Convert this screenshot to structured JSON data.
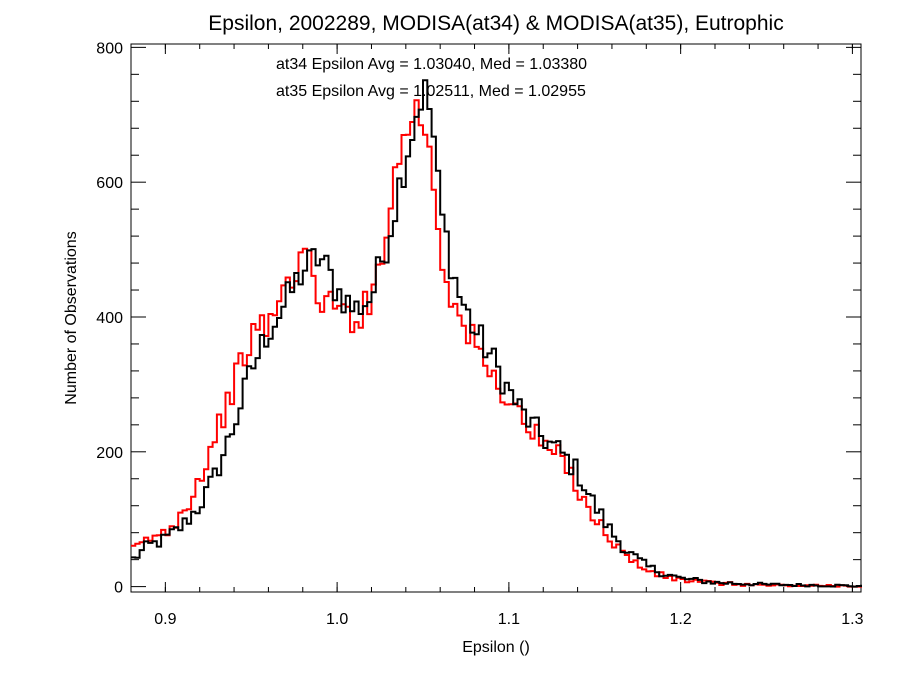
{
  "chart_data": {
    "type": "line",
    "title": "Epsilon, 2002289, MODISA(at34) & MODISA(at35), Eutrophic",
    "xlabel": "Epsilon ()",
    "ylabel": "Number of Observations",
    "xlim": [
      0.88,
      1.305
    ],
    "ylim": [
      -8,
      805
    ],
    "xticks": [
      0.9,
      1.0,
      1.1,
      1.2,
      1.3
    ],
    "xtick_labels": [
      "0.9",
      "1.0",
      "1.1",
      "1.2",
      "1.3"
    ],
    "yticks": [
      0,
      200,
      400,
      600,
      800
    ],
    "ytick_labels": [
      "0",
      "200",
      "400",
      "600",
      "800"
    ],
    "grid": false,
    "annotations": [
      {
        "text": "at34 Epsilon Avg = 1.03040, Med = 1.03380",
        "color": "#000000"
      },
      {
        "text": "at35 Epsilon Avg = 1.02511, Med = 1.02955",
        "color": "#ff0000"
      }
    ],
    "series": [
      {
        "color": "#000000",
        "x": [
          0.88,
          0.89,
          0.9,
          0.91,
          0.92,
          0.93,
          0.94,
          0.95,
          0.96,
          0.97,
          0.98,
          0.99,
          1.0,
          1.01,
          1.02,
          1.03,
          1.04,
          1.045,
          1.05,
          1.055,
          1.06,
          1.07,
          1.08,
          1.09,
          1.1,
          1.11,
          1.12,
          1.13,
          1.14,
          1.15,
          1.16,
          1.17,
          1.18,
          1.19,
          1.2,
          1.22,
          1.25,
          1.28,
          1.305
        ],
        "values": [
          38,
          60,
          70,
          90,
          120,
          170,
          240,
          320,
          380,
          420,
          470,
          490,
          440,
          410,
          430,
          520,
          640,
          690,
          740,
          700,
          560,
          440,
          380,
          340,
          290,
          250,
          220,
          200,
          170,
          120,
          80,
          50,
          30,
          20,
          12,
          6,
          3,
          2,
          1
        ]
      },
      {
        "color": "#ff0000",
        "x": [
          0.88,
          0.89,
          0.9,
          0.91,
          0.92,
          0.93,
          0.94,
          0.95,
          0.96,
          0.97,
          0.98,
          0.99,
          1.0,
          1.01,
          1.02,
          1.03,
          1.04,
          1.045,
          1.05,
          1.055,
          1.06,
          1.07,
          1.08,
          1.09,
          1.1,
          1.11,
          1.12,
          1.13,
          1.14,
          1.15,
          1.16,
          1.17,
          1.18,
          1.19,
          1.2,
          1.22,
          1.25,
          1.28,
          1.305
        ],
        "values": [
          50,
          70,
          80,
          110,
          160,
          230,
          300,
          370,
          390,
          440,
          500,
          430,
          410,
          400,
          420,
          560,
          680,
          710,
          690,
          640,
          500,
          400,
          360,
          310,
          280,
          240,
          210,
          190,
          150,
          100,
          70,
          40,
          25,
          15,
          10,
          5,
          2,
          1,
          1
        ]
      }
    ]
  }
}
